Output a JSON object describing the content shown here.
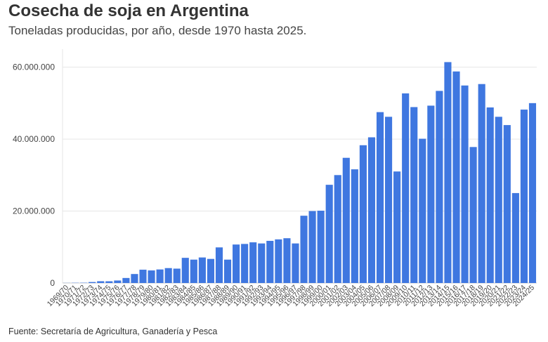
{
  "title": "Cosecha de soja en Argentina",
  "subtitle": "Toneladas producidas, por año, desde 1970 hasta 2025.",
  "source": "Fuente: Secretaría de Agricultura, Ganadería y Pesca",
  "colors": {
    "bar": "#3f77e0",
    "grid": "#e6e6e6",
    "axis": "#cccccc"
  },
  "chart_data": {
    "type": "bar",
    "title": "Cosecha de soja en Argentina",
    "subtitle": "Toneladas producidas, por año, desde 1970 hasta 2025.",
    "xlabel": "",
    "ylabel": "",
    "ylim": [
      0,
      65000000
    ],
    "yticks": [
      0,
      20000000,
      40000000,
      60000000
    ],
    "ytick_labels": [
      "0",
      "20.000.000",
      "40.000.000",
      "60.000.000"
    ],
    "grid": true,
    "categories": [
      "1969/70",
      "1970/71",
      "1971/72",
      "1972/73",
      "1973/74",
      "1974/75",
      "1975/76",
      "1976/77",
      "1977/78",
      "1978/79",
      "1979/80",
      "1980/81",
      "1981/82",
      "1982/83",
      "1983/84",
      "1984/85",
      "1985/86",
      "1986/87",
      "1987/88",
      "1988/89",
      "1989/90",
      "1990/91",
      "1991/92",
      "1992/93",
      "1993/94",
      "1994/95",
      "1995/96",
      "1996/97",
      "1997/98",
      "1998/99",
      "1999/00",
      "2000/01",
      "2001/02",
      "2002/03",
      "2003/04",
      "2004/05",
      "2005/06",
      "2006/07",
      "2007/08",
      "2008/09",
      "2009/10",
      "2010/11",
      "2011/12",
      "2012/13",
      "2013/14",
      "2014/15",
      "2015/16",
      "2016/17",
      "2017/18",
      "2018/19",
      "2019/20",
      "2020/21",
      "2021/22",
      "2022/23",
      "2023/24",
      "2024/25"
    ],
    "values": [
      27000,
      59000,
      78000,
      272000,
      496000,
      485000,
      695000,
      1400000,
      2500000,
      3700000,
      3500000,
      3770000,
      4150000,
      4000000,
      7000000,
      6500000,
      7100000,
      6700000,
      9900000,
      6500000,
      10700000,
      10860000,
      11310000,
      11000000,
      11720000,
      12130000,
      12450000,
      11000000,
      18700000,
      20000000,
      20100000,
      27300000,
      30000000,
      34800000,
      31600000,
      38300000,
      40500000,
      47500000,
      46200000,
      31000000,
      52700000,
      48900000,
      40100000,
      49300000,
      53400000,
      61400000,
      58800000,
      54900000,
      37800000,
      55300000,
      48800000,
      46200000,
      43900000,
      25000000,
      48200000,
      50000000
    ]
  }
}
